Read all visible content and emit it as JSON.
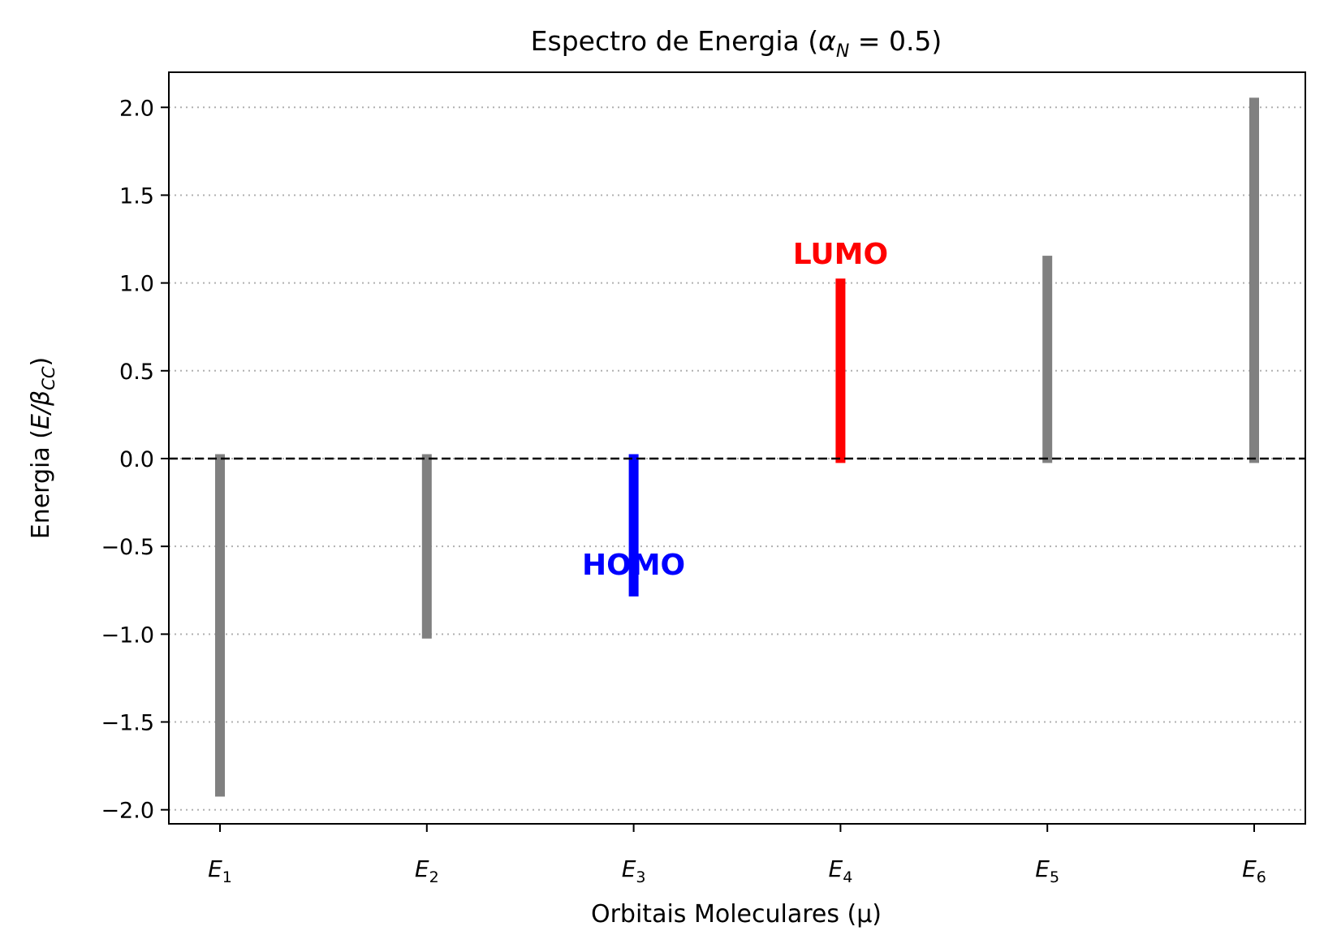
{
  "chart_data": {
    "type": "bar",
    "title": "Espectro de Energia (αN = 0.5)",
    "title_parts": {
      "prefix": "Espectro de Energia (",
      "symbol": "α",
      "subscript": "N",
      "suffix": " = 0.5)"
    },
    "xlabel": "Orbitais Moleculares (μ)",
    "ylabel": "Energia (E/βCC)",
    "ylabel_parts": {
      "prefix": "Energia (",
      "symbol": "E/β",
      "subscript": "CC",
      "suffix": ")"
    },
    "categories": [
      "E1",
      "E2",
      "E3",
      "E4",
      "E5",
      "E6"
    ],
    "category_parts": [
      {
        "main": "E",
        "sub": "1"
      },
      {
        "main": "E",
        "sub": "2"
      },
      {
        "main": "E",
        "sub": "3"
      },
      {
        "main": "E",
        "sub": "4"
      },
      {
        "main": "E",
        "sub": "5"
      },
      {
        "main": "E",
        "sub": "6"
      }
    ],
    "values": [
      -1.9,
      -1.0,
      -0.76,
      1.0,
      1.13,
      2.03
    ],
    "colors": [
      "#808080",
      "#808080",
      "#0000ff",
      "#ff0000",
      "#808080",
      "#808080"
    ],
    "ylim": [
      -2.08,
      2.2
    ],
    "yticks": [
      2.0,
      1.5,
      1.0,
      0.5,
      0.0,
      -0.5,
      -1.0,
      -1.5,
      -2.0
    ],
    "ytick_labels": [
      "2.0",
      "1.5",
      "1.0",
      "0.5",
      "0.0",
      "−0.5",
      "−1.0",
      "−1.5",
      "−2.0"
    ],
    "grid": "horizontal dotted",
    "reference_line": {
      "y": 0.0,
      "style": "dashed",
      "color": "#000000"
    },
    "annotations": [
      {
        "text": "HOMO",
        "category_index": 2,
        "y": -0.6,
        "color": "#0000ff"
      },
      {
        "text": "LUMO",
        "category_index": 3,
        "y": 1.17,
        "color": "#ff0000"
      }
    ]
  }
}
